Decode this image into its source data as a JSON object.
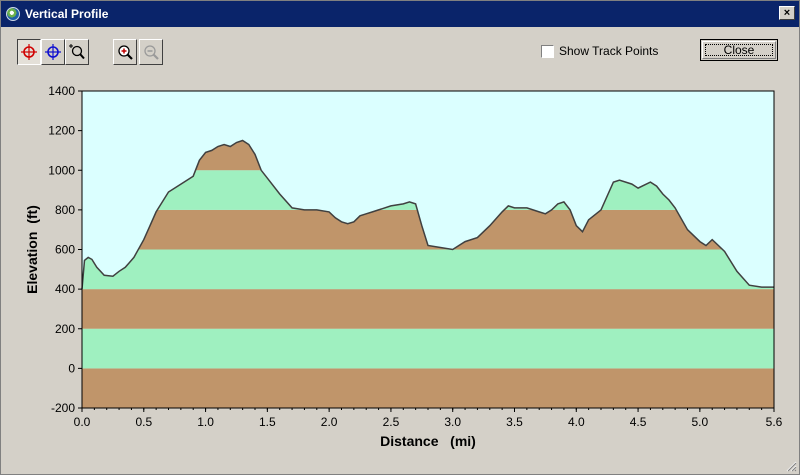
{
  "window": {
    "title": "Vertical Profile",
    "close_glyph": "×"
  },
  "toolbar": {
    "buttons": [
      {
        "name": "select-point-red",
        "icon": "crosshair-red-icon"
      },
      {
        "name": "select-point-blue",
        "icon": "crosshair-blue-icon"
      },
      {
        "name": "zoom-box",
        "icon": "zoom-box-icon"
      },
      {
        "name": "zoom-in",
        "icon": "zoom-in-icon"
      },
      {
        "name": "zoom-out",
        "icon": "zoom-out-icon",
        "disabled": true
      }
    ],
    "show_track_points": {
      "label": "Show Track Points",
      "checked": false
    },
    "close_label": "Close"
  },
  "chart_data": {
    "type": "area",
    "xlabel": "Distance   (mi)",
    "ylabel": "Elevation  (ft)",
    "xlim": [
      0,
      5.6
    ],
    "ylim": [
      -200,
      1400
    ],
    "xticks": [
      0.0,
      0.5,
      1.0,
      1.5,
      2.0,
      2.5,
      3.0,
      3.5,
      4.0,
      4.5,
      5.0,
      5.6
    ],
    "xtick_labels": [
      "0.0",
      "0.5",
      "1.0",
      "1.5",
      "2.0",
      "2.5",
      "3.0",
      "3.5",
      "4.0",
      "4.5",
      "5.0",
      "5.6"
    ],
    "yticks": [
      -200,
      0,
      200,
      400,
      600,
      800,
      1000,
      1200,
      1400
    ],
    "ytick_labels": [
      "-200",
      "0",
      "200",
      "400",
      "600",
      "800",
      "1000",
      "1200",
      "1400"
    ],
    "band_interval": 200,
    "colors": {
      "background": "#dbffff",
      "band_brown": "#c0956a",
      "band_green": "#9ff0c0",
      "line": "#404040"
    },
    "x": [
      0.0,
      0.02,
      0.05,
      0.08,
      0.12,
      0.18,
      0.25,
      0.3,
      0.35,
      0.42,
      0.5,
      0.55,
      0.6,
      0.7,
      0.8,
      0.9,
      0.95,
      1.0,
      1.05,
      1.1,
      1.15,
      1.2,
      1.25,
      1.3,
      1.35,
      1.4,
      1.45,
      1.5,
      1.6,
      1.7,
      1.8,
      1.9,
      2.0,
      2.05,
      2.1,
      2.15,
      2.2,
      2.25,
      2.3,
      2.35,
      2.4,
      2.5,
      2.6,
      2.65,
      2.7,
      2.75,
      2.8,
      2.9,
      3.0,
      3.05,
      3.1,
      3.2,
      3.3,
      3.4,
      3.45,
      3.5,
      3.6,
      3.7,
      3.75,
      3.8,
      3.85,
      3.9,
      3.95,
      4.0,
      4.05,
      4.1,
      4.2,
      4.3,
      4.35,
      4.4,
      4.45,
      4.5,
      4.6,
      4.65,
      4.7,
      4.75,
      4.8,
      4.9,
      5.0,
      5.05,
      5.1,
      5.15,
      5.2,
      5.3,
      5.4,
      5.5,
      5.6
    ],
    "y": [
      400,
      545,
      560,
      550,
      510,
      470,
      465,
      490,
      510,
      560,
      650,
      720,
      790,
      890,
      930,
      970,
      1050,
      1090,
      1100,
      1120,
      1130,
      1120,
      1140,
      1150,
      1130,
      1080,
      1000,
      960,
      880,
      810,
      800,
      800,
      790,
      760,
      740,
      730,
      740,
      770,
      780,
      790,
      800,
      820,
      830,
      840,
      830,
      720,
      620,
      610,
      600,
      620,
      640,
      660,
      720,
      790,
      820,
      810,
      810,
      790,
      780,
      800,
      830,
      840,
      800,
      720,
      690,
      750,
      800,
      940,
      950,
      940,
      930,
      910,
      940,
      920,
      880,
      850,
      810,
      700,
      640,
      620,
      650,
      620,
      590,
      490,
      420,
      410,
      410
    ]
  }
}
